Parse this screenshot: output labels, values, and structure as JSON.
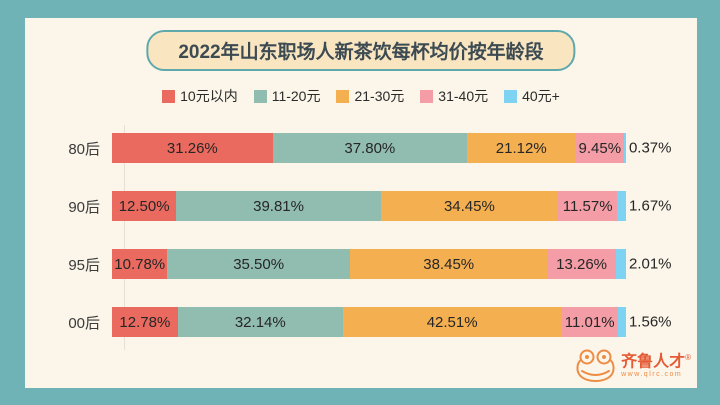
{
  "colors": {
    "frame_bg": "#6FB3B6",
    "panel_bg": "#FBF5EA",
    "title_pill_bg": "#F9E6C1",
    "title_pill_border": "#5FA8AC",
    "title_text": "#3C4A52",
    "value_label_text": "#262626",
    "category_text": "#3B3B3B",
    "axis_line": "#E5E0D3",
    "logo_outline": "#EE8C44",
    "logo_text": "#E55B35"
  },
  "title": "2022年山东职场人新茶饮每杯均价按年龄段",
  "chart_data": {
    "type": "bar",
    "variant": "horizontal-stacked-100-percent",
    "title": "2022年山东职场人新茶饮每杯均价按年龄段",
    "categories": [
      "80后",
      "90后",
      "95后",
      "00后"
    ],
    "series": [
      {
        "name": "10元以内",
        "color": "#EA6A5F",
        "values": [
          31.26,
          12.5,
          10.78,
          12.78
        ],
        "labels": [
          "31.26%",
          "12.50%",
          "10.78%",
          "12.78%"
        ]
      },
      {
        "name": "11-20元",
        "color": "#91BCB0",
        "values": [
          37.8,
          39.81,
          35.5,
          32.14
        ],
        "labels": [
          "37.80%",
          "39.81%",
          "35.50%",
          "32.14%"
        ]
      },
      {
        "name": "21-30元",
        "color": "#F4AF51",
        "values": [
          21.12,
          34.45,
          38.45,
          42.51
        ],
        "labels": [
          "21.12%",
          "34.45%",
          "38.45%",
          "42.51%"
        ]
      },
      {
        "name": "31-40元",
        "color": "#F49DA6",
        "values": [
          9.45,
          11.57,
          13.26,
          11.01
        ],
        "labels": [
          "9.45%",
          "11.57%",
          "13.26%",
          "11.01%"
        ]
      },
      {
        "name": "40元+",
        "color": "#7ED2F2",
        "values": [
          0.37,
          1.67,
          2.01,
          1.56
        ],
        "labels": [
          "0.37%",
          "1.67%",
          "2.01%",
          "1.56%"
        ]
      }
    ],
    "value_format": "percent",
    "xlim": [
      0,
      100
    ],
    "legend_position": "top",
    "grid": false
  },
  "logo": {
    "name": "齐鲁人才",
    "reg": "®",
    "url": "www.qlrc.com"
  }
}
